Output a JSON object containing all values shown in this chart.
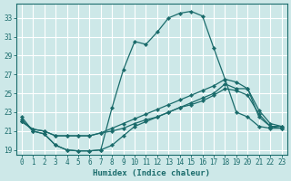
{
  "xlabel": "Humidex (Indice chaleur)",
  "background_color": "#cde8e8",
  "grid_color": "#ffffff",
  "line_color": "#1a6b6b",
  "ylim": [
    18.5,
    34.5
  ],
  "xlim": [
    -0.5,
    23.5
  ],
  "yticks": [
    19,
    21,
    23,
    25,
    27,
    29,
    31,
    33
  ],
  "xticks": [
    0,
    1,
    2,
    3,
    4,
    5,
    6,
    7,
    8,
    9,
    10,
    11,
    12,
    13,
    14,
    15,
    16,
    17,
    18,
    19,
    20,
    21,
    22,
    23
  ],
  "line1_y": [
    22.5,
    21.0,
    20.7,
    19.5,
    19.0,
    18.9,
    18.9,
    19.0,
    23.5,
    27.5,
    30.5,
    30.2,
    31.5,
    33.0,
    33.5,
    33.7,
    33.2,
    29.8,
    26.5,
    23.0,
    22.5,
    21.5,
    21.3,
    21.3
  ],
  "line2_y": [
    22.2,
    21.0,
    20.7,
    19.5,
    19.0,
    18.9,
    18.9,
    19.0,
    19.5,
    20.5,
    21.5,
    22.0,
    22.5,
    23.0,
    23.5,
    24.0,
    24.5,
    25.0,
    26.0,
    25.5,
    25.5,
    22.5,
    21.5,
    21.3
  ],
  "line3_y": [
    22.0,
    21.2,
    21.0,
    20.5,
    20.5,
    20.5,
    20.5,
    20.8,
    21.0,
    21.3,
    21.8,
    22.2,
    22.5,
    23.0,
    23.5,
    23.8,
    24.2,
    24.8,
    25.5,
    25.3,
    24.8,
    22.8,
    21.5,
    21.5
  ],
  "line4_y": [
    22.0,
    21.2,
    21.0,
    20.5,
    20.5,
    20.5,
    20.5,
    20.8,
    21.3,
    21.8,
    22.3,
    22.8,
    23.3,
    23.8,
    24.3,
    24.8,
    25.3,
    25.8,
    26.5,
    26.2,
    25.5,
    23.2,
    21.8,
    21.5
  ]
}
